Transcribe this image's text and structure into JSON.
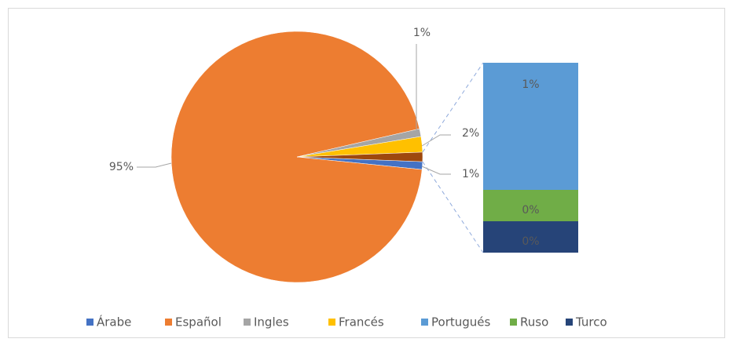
{
  "chart_data": {
    "type": "bar-of-pie",
    "categories": [
      "Árabe",
      "Español",
      "Ingles",
      "Francés",
      "Portugués",
      "Ruso",
      "Turco"
    ],
    "values": [
      1,
      95,
      1,
      2,
      0.81,
      0.2,
      0.2
    ],
    "value_labels": [
      "1%",
      "95%",
      "1%",
      "2%",
      "1%",
      "0%",
      "0%"
    ],
    "colors": [
      "#4472c4",
      "#ed7d31",
      "#a5a5a5",
      "#ffc000",
      "#5b9bd5",
      "#70ad47",
      "#264478"
    ],
    "other_color": "#9e480e",
    "legend": "bottom"
  }
}
